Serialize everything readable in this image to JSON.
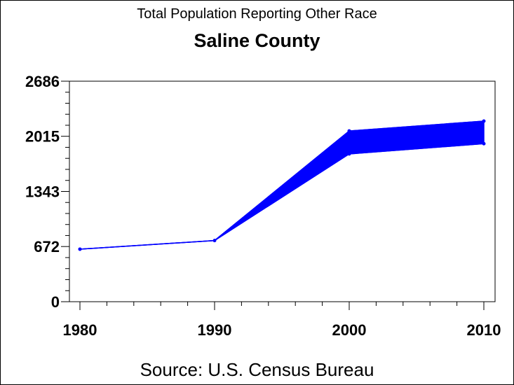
{
  "chart_data": {
    "type": "area",
    "title": "Total Population Reporting Other Race",
    "subtitle": "Saline County",
    "source": "Source: U.S. Census Bureau",
    "x": [
      1980,
      1990,
      2000,
      2010
    ],
    "x_tick_labels": [
      "1980",
      "1990",
      "2000",
      "2010"
    ],
    "y_ticks": [
      0,
      672,
      1343,
      2015,
      2686
    ],
    "y_tick_labels": [
      "0",
      "672",
      "1343",
      "2015",
      "2686"
    ],
    "ylim": [
      0,
      2686
    ],
    "xlim": [
      1980,
      2010
    ],
    "series": [
      {
        "role": "upper",
        "values": [
          640,
          745,
          2080,
          2200
        ]
      },
      {
        "role": "lower",
        "values": [
          640,
          745,
          1800,
          1925
        ]
      }
    ],
    "color": "#0000ff",
    "grid": false
  }
}
